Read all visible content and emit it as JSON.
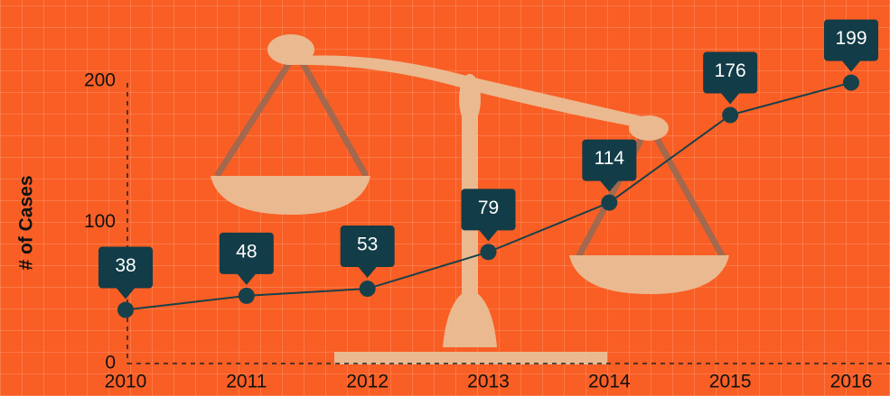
{
  "chart_data": {
    "type": "line",
    "y_label": "# of Cases",
    "categories": [
      "2010",
      "2011",
      "2012",
      "2013",
      "2014",
      "2015",
      "2016"
    ],
    "values": [
      38,
      48,
      53,
      79,
      114,
      176,
      199
    ],
    "color": "#17414a",
    "label_color": "#123c47",
    "ylim": [
      0,
      200
    ],
    "yticks": [
      0,
      100,
      200
    ]
  }
}
